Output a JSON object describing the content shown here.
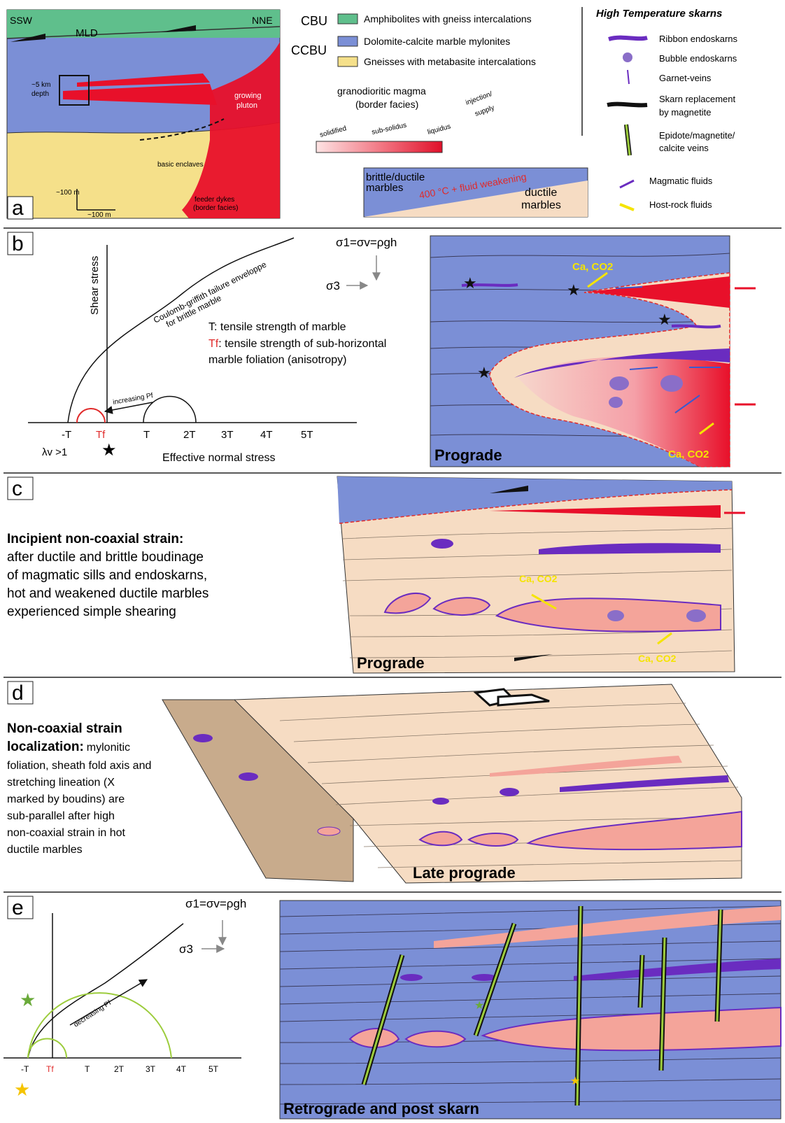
{
  "panels": {
    "a": {
      "letter": "a",
      "ssw": "SSW",
      "nne": "NNE",
      "mld": "MLD",
      "depth": [
        "~5 km",
        "depth"
      ],
      "pluton": [
        "growing",
        "pluton"
      ],
      "enclaves": "basic enclaves",
      "feeder": [
        "feeder dykes",
        "(border facies)"
      ],
      "scale_v": "~100 m",
      "scale_h": "~100 m"
    },
    "legend": {
      "cbu": "CBU",
      "ccbu": "CCBU",
      "units": [
        "Amphibolites with gneiss intercalations",
        "Dolomite-calcite marble mylonites",
        "Gneisses with metabasite intercalations"
      ],
      "magma": [
        "granodioritic magma",
        "(border facies)"
      ],
      "injection": [
        "injection/",
        "supply"
      ],
      "gradient": [
        "solidified",
        "sub-solidus",
        "liquidus"
      ],
      "box_left": [
        "brittle/ductile",
        "marbles"
      ],
      "box_red": "400 °C + fluid weakening",
      "box_right": [
        "ductile",
        "marbles"
      ],
      "hts_title": "High Temperature skarns",
      "hts_items": [
        "Ribbon endoskarns",
        "Bubble endoskarns",
        "Garnet-veins",
        "Skarn replacement",
        "by magnetite",
        "Epidote/magnetite/",
        "calcite veins",
        "Magmatic fluids",
        "Host-rock fluids"
      ]
    },
    "b": {
      "letter": "b",
      "shear": "Shear stress",
      "envelope": [
        "Coulomb-griffith failure enveloppe",
        "for brittle marble"
      ],
      "sigma1": "σ1=σv=ρgh",
      "sigma3": "σ3",
      "T_desc": "T: tensile strength of marble",
      "Tf_label": "Tf",
      "Tf_desc": ": tensile strength of sub-horizontal",
      "Tf_desc2": "marble foliation (anisotropy)",
      "increasing": "increasing Pf",
      "ticks": [
        "-T",
        "Tf",
        "T",
        "2T",
        "3T",
        "4T",
        "5T"
      ],
      "lambda": "λv >1",
      "xaxis": "Effective normal stress",
      "fluid_label": "Ca, CO2",
      "fluid_label2": "Ca, CO2",
      "stage": "Prograde"
    },
    "c": {
      "letter": "c",
      "title": "Incipient non-coaxial strain:",
      "body": [
        "after ductile and brittle boudinage",
        "of magmatic sills and endoskarns,",
        "hot and weakened ductile marbles",
        "experienced simple shearing"
      ],
      "fluid_label": "Ca, CO2",
      "fluid_label2": "Ca, CO2",
      "stage": "Prograde"
    },
    "d": {
      "letter": "d",
      "title": "Non-coaxial strain",
      "title2": "localization:",
      "body_first": "mylonitic",
      "body": [
        "foliation, sheath fold axis and",
        "stretching lineation (X",
        "marked by boudins) are",
        "sub-parallel after high",
        "non-coaxial strain in hot",
        "ductile marbles"
      ],
      "stage": "Late prograde"
    },
    "e": {
      "letter": "e",
      "sigma1": "σ1=σv=ρgh",
      "sigma3": "σ3",
      "decreasing": "decreasing Pf",
      "ticks": [
        "-T",
        "Tf",
        "T",
        "2T",
        "3T",
        "4T",
        "5T"
      ],
      "stage": "Retrograde and post skarn"
    }
  },
  "colors": {
    "amphibolite": "#5fbf8c",
    "marble": "#7b8fd6",
    "gneiss": "#f5e08a",
    "magma": "#e8102a",
    "ductile": "#f6dcc3",
    "skarn": "#6a2cc0",
    "pink": "#f4a49a",
    "epidote": "#9ccc3c",
    "fluid_yellow": "#f5e400"
  }
}
